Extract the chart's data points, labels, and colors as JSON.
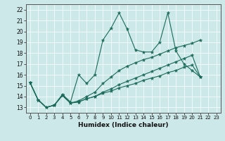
{
  "xlabel": "Humidex (Indice chaleur)",
  "bg_color": "#cce8e8",
  "grid_color": "#ffffff",
  "line_color": "#1a6b5a",
  "xlim": [
    -0.5,
    23.5
  ],
  "ylim": [
    12.5,
    22.5
  ],
  "xticks": [
    0,
    1,
    2,
    3,
    4,
    5,
    6,
    7,
    8,
    9,
    10,
    11,
    12,
    13,
    14,
    15,
    16,
    17,
    18,
    19,
    20,
    21,
    22,
    23
  ],
  "yticks": [
    13,
    14,
    15,
    16,
    17,
    18,
    19,
    20,
    21,
    22
  ],
  "series": [
    [
      15.3,
      13.7,
      13.0,
      13.2,
      14.2,
      13.5,
      16.0,
      15.2,
      16.0,
      19.2,
      20.3,
      21.7,
      20.2,
      18.3,
      18.1,
      18.1,
      19.0,
      21.7,
      18.2,
      17.0,
      16.4,
      15.8
    ],
    [
      15.3,
      13.7,
      13.0,
      13.2,
      14.1,
      13.4,
      13.6,
      14.0,
      14.4,
      15.2,
      15.8,
      16.4,
      16.8,
      17.1,
      17.4,
      17.6,
      17.9,
      18.2,
      18.5,
      18.7,
      18.9,
      19.2
    ],
    [
      15.3,
      13.7,
      13.0,
      13.2,
      14.1,
      13.4,
      13.5,
      13.8,
      14.0,
      14.3,
      14.5,
      14.8,
      15.0,
      15.2,
      15.5,
      15.7,
      15.9,
      16.2,
      16.4,
      16.7,
      16.9,
      15.8
    ],
    [
      15.3,
      13.7,
      13.0,
      13.2,
      14.1,
      13.4,
      13.5,
      13.8,
      14.0,
      14.4,
      14.7,
      15.1,
      15.4,
      15.7,
      16.0,
      16.3,
      16.6,
      16.9,
      17.2,
      17.5,
      17.8,
      15.8
    ]
  ]
}
